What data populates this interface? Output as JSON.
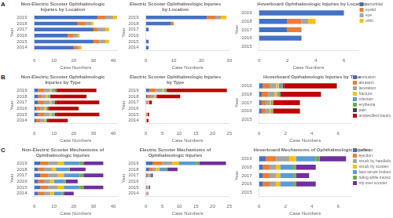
{
  "chart_data": [
    {
      "type": "bar",
      "orientation": "horizontal",
      "stacked": true,
      "grid": false,
      "title": "Non-Electric Scooter Ophthalmologic Injuries by Location",
      "x_label": "Case Numbers",
      "y_label": "Year",
      "annotations": [
        "A"
      ],
      "categories": [
        "2019",
        "2018",
        "2017",
        "2016",
        "2015",
        "2014"
      ],
      "series": [
        {
          "name": "periorbital",
          "color": "#4472C4",
          "values": [
            32,
            22,
            30,
            17,
            30,
            20
          ]
        },
        {
          "name": "eyelid",
          "color": "#ED7D31",
          "values": [
            4,
            4,
            2,
            3,
            3,
            2
          ]
        },
        {
          "name": "eye",
          "color": "#A5A5A5",
          "values": [
            4,
            3,
            4,
            2,
            3,
            1
          ]
        },
        {
          "name": "orbit",
          "color": "#FFC000",
          "values": [
            2,
            1,
            2,
            1,
            2,
            1
          ]
        }
      ],
      "xlim": [
        0,
        42
      ],
      "xticks": [
        0,
        10,
        20,
        30,
        40
      ]
    },
    {
      "type": "bar",
      "orientation": "horizontal",
      "stacked": true,
      "grid": false,
      "title": "Electric Scooter Ophthalmologic Injuries by Location",
      "x_label": "Case Numbers",
      "y_label": "Year",
      "categories": [
        "2019",
        "2018",
        "2017",
        "2016",
        "2015",
        "2014"
      ],
      "series": [
        {
          "name": "periorbital",
          "color": "#4472C4",
          "values": [
            22,
            9,
            1,
            0,
            1,
            1
          ]
        },
        {
          "name": "eyelid",
          "color": "#ED7D31",
          "values": [
            3,
            1,
            0,
            0,
            0,
            0
          ]
        },
        {
          "name": "eye",
          "color": "#A5A5A5",
          "values": [
            2,
            0,
            0,
            0,
            0,
            0
          ]
        },
        {
          "name": "orbit",
          "color": "#FFC000",
          "values": [
            2,
            0,
            0,
            0,
            0,
            0
          ]
        }
      ],
      "xlim": [
        0,
        30
      ],
      "xticks": [
        0,
        10,
        20,
        30
      ]
    },
    {
      "type": "bar",
      "orientation": "horizontal",
      "stacked": true,
      "grid": false,
      "legend": "upper right",
      "title": "Hoverboard Ophthalmologic Injuries by Location",
      "x_label": "Case Numbers",
      "y_label": "Year",
      "categories": [
        "2019",
        "2018",
        "2017",
        "2016",
        "2015"
      ],
      "series": [
        {
          "name": "periorbital",
          "color": "#4472C4",
          "values": [
            6,
            2,
            2,
            3,
            0
          ]
        },
        {
          "name": "eyelid",
          "color": "#ED7D31",
          "values": [
            0,
            1,
            1,
            0,
            0
          ]
        },
        {
          "name": "eye",
          "color": "#A5A5A5",
          "values": [
            0,
            0.5,
            0,
            0,
            0
          ]
        },
        {
          "name": "orbit",
          "color": "#FFC000",
          "values": [
            0,
            0.5,
            0,
            0,
            0
          ]
        }
      ],
      "xlim": [
        0,
        7
      ],
      "xticks": [
        0,
        2,
        4,
        6
      ]
    },
    {
      "type": "bar",
      "orientation": "horizontal",
      "stacked": true,
      "grid": false,
      "title": "Non-Electric Scooter Ophthalmologic Injuries by Type",
      "x_label": "Case Numbers",
      "y_label": "Year",
      "annotations": [
        "B"
      ],
      "categories": [
        "2019",
        "2018",
        "2017",
        "2016",
        "2015",
        "2014"
      ],
      "series": [
        {
          "name": "contusion",
          "color": "#4472C4",
          "values": [
            2,
            2,
            2,
            1,
            2,
            1
          ]
        },
        {
          "name": "abrasion",
          "color": "#ED7D31",
          "values": [
            3,
            2,
            3,
            2,
            3,
            2
          ]
        },
        {
          "name": "laceration",
          "color": "#A5A5A5",
          "values": [
            3,
            2,
            3,
            2,
            3,
            2
          ]
        },
        {
          "name": "fracture",
          "color": "#FFC000",
          "values": [
            1,
            1,
            1,
            1,
            1,
            0.5
          ]
        },
        {
          "name": "infection",
          "color": "#5B9BD5",
          "values": [
            1,
            0.5,
            1,
            0.5,
            1,
            0.5
          ]
        },
        {
          "name": "erythema",
          "color": "#70AD47",
          "values": [
            1,
            0.5,
            0.5,
            0.5,
            0.5,
            0.5
          ]
        },
        {
          "name": "pain",
          "color": "#404040",
          "values": [
            0.5,
            0.5,
            0.5,
            0.5,
            0.5,
            0.5
          ]
        },
        {
          "name": "unspecified trauma",
          "color": "#C00000",
          "values": [
            20,
            18,
            22,
            15,
            22,
            10
          ]
        }
      ],
      "xlim": [
        0,
        42
      ],
      "xticks": [
        0,
        10,
        20,
        30,
        40
      ]
    },
    {
      "type": "bar",
      "orientation": "horizontal",
      "stacked": true,
      "grid": false,
      "title": "Electric Scooter Ophthalmologic Injuries by Type",
      "x_label": "Case Numbers",
      "y_label": "Year",
      "categories": [
        "2019",
        "2018",
        "2017",
        "2016",
        "2015",
        "2014"
      ],
      "series": [
        {
          "name": "contusion",
          "color": "#4472C4",
          "values": [
            1,
            0.5,
            0.2,
            0,
            0.1,
            0.1
          ]
        },
        {
          "name": "abrasion",
          "color": "#ED7D31",
          "values": [
            2,
            1,
            0.3,
            0,
            0.2,
            0.1
          ]
        },
        {
          "name": "laceration",
          "color": "#A5A5A5",
          "values": [
            2,
            1,
            0.3,
            0,
            0.2,
            0.1
          ]
        },
        {
          "name": "fracture",
          "color": "#FFC000",
          "values": [
            0.5,
            0.3,
            0.1,
            0,
            0,
            0
          ]
        },
        {
          "name": "infection",
          "color": "#5B9BD5",
          "values": [
            0.3,
            0.2,
            0.1,
            0,
            0,
            0
          ]
        },
        {
          "name": "erythema",
          "color": "#70AD47",
          "values": [
            0.3,
            0.2,
            0,
            0,
            0,
            0
          ]
        },
        {
          "name": "pain",
          "color": "#404040",
          "values": [
            0.2,
            0.1,
            0,
            0,
            0,
            0
          ]
        },
        {
          "name": "unspecified trauma",
          "color": "#C00000",
          "values": [
            18,
            7,
            0.8,
            0,
            0.5,
            0.5
          ]
        }
      ],
      "xlim": [
        0,
        25
      ],
      "xticks": [
        0,
        5,
        10,
        15,
        20,
        25
      ]
    },
    {
      "type": "bar",
      "orientation": "horizontal",
      "stacked": true,
      "grid": false,
      "legend": "upper right",
      "title": "Hoverboard Opthalmologic Injuries by Type",
      "x_label": "Case Numbers",
      "y_label": "Year",
      "categories": [
        "2019",
        "2018",
        "2017",
        "2016",
        "2015"
      ],
      "series": [
        {
          "name": "contusion",
          "color": "#4472C4",
          "values": [
            0.3,
            0.2,
            0.2,
            0.2,
            0
          ]
        },
        {
          "name": "abrasion",
          "color": "#ED7D31",
          "values": [
            0.5,
            0.5,
            0.3,
            0.3,
            0
          ]
        },
        {
          "name": "laceration",
          "color": "#A5A5A5",
          "values": [
            0.5,
            0.5,
            0.3,
            0.3,
            0
          ]
        },
        {
          "name": "fracture",
          "color": "#FFC000",
          "values": [
            0.2,
            0.2,
            0.1,
            0.1,
            0
          ]
        },
        {
          "name": "infection",
          "color": "#5B9BD5",
          "values": [
            0.2,
            0.1,
            0.1,
            0.1,
            0
          ]
        },
        {
          "name": "erythema",
          "color": "#70AD47",
          "values": [
            0.1,
            0.1,
            0.1,
            0.1,
            0
          ]
        },
        {
          "name": "pain",
          "color": "#404040",
          "values": [
            0.1,
            0.1,
            0,
            0,
            0
          ]
        },
        {
          "name": "unspecified trauma",
          "color": "#C00000",
          "values": [
            4,
            3,
            2,
            2,
            0
          ]
        }
      ],
      "xlim": [
        0,
        7
      ],
      "xticks": [
        0,
        2,
        4,
        6
      ]
    },
    {
      "type": "bar",
      "orientation": "horizontal",
      "stacked": true,
      "grid": false,
      "title": "Non-Electric Scooter Mechanisms of Ophthalmologic Injuries",
      "x_label": "Case Numbers",
      "y_label": "Year",
      "annotations": [
        "C"
      ],
      "categories": [
        "2019",
        "2018",
        "2017",
        "2016",
        "2015",
        "2014"
      ],
      "series": [
        {
          "name": "collision",
          "color": "#4472C4",
          "values": [
            3,
            2,
            3,
            2,
            3,
            2
          ]
        },
        {
          "name": "ejection",
          "color": "#ED7D31",
          "values": [
            4,
            3,
            4,
            3,
            4,
            3
          ]
        },
        {
          "name": "struck by handlebars",
          "color": "#A5A5A5",
          "values": [
            5,
            4,
            5,
            3,
            5,
            3
          ]
        },
        {
          "name": "struck by scooter",
          "color": "#FFC000",
          "values": [
            3,
            2,
            3,
            2,
            3,
            2
          ]
        },
        {
          "name": "face struck broken",
          "color": "#5B9BD5",
          "values": [
            8,
            6,
            8,
            5,
            8,
            4
          ]
        },
        {
          "name": "riding while intoxicated",
          "color": "#70AD47",
          "values": [
            2,
            1,
            2,
            1,
            2,
            1
          ]
        },
        {
          "name": "trip over scooter",
          "color": "#7030A0",
          "values": [
            10,
            8,
            10,
            6,
            10,
            5
          ]
        }
      ],
      "xlim": [
        0,
        42
      ],
      "xticks": [
        0,
        10,
        20,
        30,
        40
      ]
    },
    {
      "type": "bar",
      "orientation": "horizontal",
      "stacked": true,
      "grid": false,
      "title": "Electric Scooter Mechanisms of Ophthalmologic Injuries",
      "x_label": "Case Numbers",
      "y_label": "Year",
      "categories": [
        "2019",
        "2018",
        "2017",
        "2016",
        "2015",
        "2014"
      ],
      "series": [
        {
          "name": "collision",
          "color": "#4472C4",
          "values": [
            2,
            1,
            0.3,
            0,
            0.2,
            0.1
          ]
        },
        {
          "name": "ejection",
          "color": "#ED7D31",
          "values": [
            3,
            1,
            0.3,
            0,
            0.2,
            0.1
          ]
        },
        {
          "name": "struck by handlebars",
          "color": "#A5A5A5",
          "values": [
            3,
            1,
            0.3,
            0,
            0.2,
            0.1
          ]
        },
        {
          "name": "struck by scooter",
          "color": "#FFC000",
          "values": [
            2,
            1,
            0.2,
            0,
            0.1,
            0.1
          ]
        },
        {
          "name": "face struck broken",
          "color": "#5B9BD5",
          "values": [
            5,
            2,
            0.4,
            0,
            0.2,
            0.1
          ]
        },
        {
          "name": "riding while intoxicated",
          "color": "#70AD47",
          "values": [
            1,
            0.5,
            0.1,
            0,
            0.1,
            0
          ]
        },
        {
          "name": "trip over scooter",
          "color": "#7030A0",
          "values": [
            8,
            3,
            0.5,
            0,
            0.3,
            0.2
          ]
        }
      ],
      "xlim": [
        0,
        25
      ],
      "xticks": [
        0,
        5,
        10,
        15,
        20,
        25
      ]
    },
    {
      "type": "bar",
      "orientation": "horizontal",
      "stacked": true,
      "grid": false,
      "legend": "upper right",
      "title": "Hoverboard Mechanisms of Ophthalmologic Injuries",
      "x_label": "Case Numbers",
      "y_label": "Year",
      "categories": [
        "2019",
        "2018",
        "2017",
        "2016",
        "2015"
      ],
      "series": [
        {
          "name": "collision",
          "color": "#4472C4",
          "values": [
            0.5,
            0.3,
            0.3,
            0.3,
            0
          ]
        },
        {
          "name": "ejection",
          "color": "#ED7D31",
          "values": [
            0.8,
            0.5,
            0.5,
            0.5,
            0
          ]
        },
        {
          "name": "struck by handlebars",
          "color": "#A5A5A5",
          "values": [
            1,
            0.5,
            0.5,
            0.5,
            0
          ]
        },
        {
          "name": "struck by scooter",
          "color": "#FFC000",
          "values": [
            0.5,
            0.3,
            0.3,
            0.3,
            0
          ]
        },
        {
          "name": "face struck broken",
          "color": "#5B9BD5",
          "values": [
            1.5,
            1,
            1,
            1,
            0
          ]
        },
        {
          "name": "riding while intoxicated",
          "color": "#70AD47",
          "values": [
            0.3,
            0.2,
            0.2,
            0.2,
            0
          ]
        },
        {
          "name": "trip over scooter",
          "color": "#7030A0",
          "values": [
            2,
            1.5,
            1,
            1.5,
            0
          ]
        }
      ],
      "xlim": [
        0,
        7
      ],
      "xticks": [
        0,
        2,
        4,
        6
      ]
    }
  ]
}
